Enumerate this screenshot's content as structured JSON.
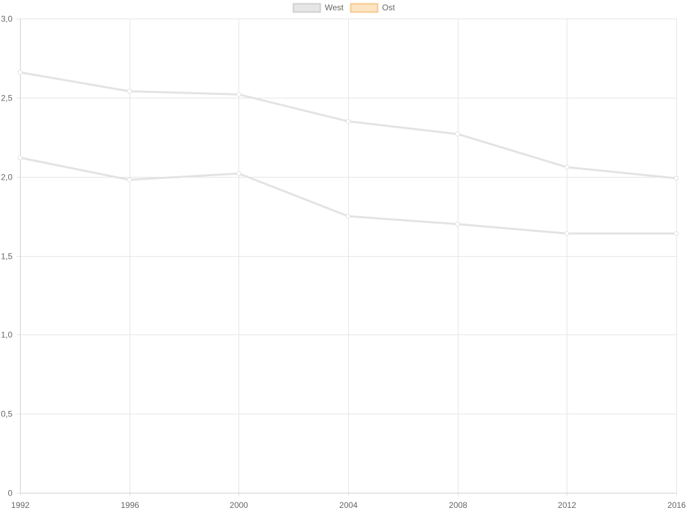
{
  "chart_data": {
    "type": "line",
    "x": [
      "1992",
      "1996",
      "2000",
      "2004",
      "2008",
      "2012",
      "2016"
    ],
    "series": [
      {
        "name": "West",
        "values": [
          2.66,
          2.54,
          2.52,
          2.35,
          2.27,
          2.06,
          1.99
        ],
        "color": "#e3e3e3"
      },
      {
        "name": "Ost",
        "values": [
          2.12,
          1.98,
          2.02,
          1.75,
          1.7,
          1.64,
          1.64
        ],
        "color": "#e3e3e3"
      }
    ],
    "legend": {
      "position": "top-center",
      "items": [
        {
          "label": "West",
          "fill": "#e6e6e6",
          "stroke": "#cfcfcf"
        },
        {
          "label": "Ost",
          "fill": "#fde4c2",
          "stroke": "#f5c98e"
        }
      ]
    },
    "y_ticks": [
      "0",
      "0,5",
      "1,0",
      "1,5",
      "2,0",
      "2,5",
      "3,0"
    ],
    "y_tick_values": [
      0,
      0.5,
      1.0,
      1.5,
      2.0,
      2.5,
      3.0
    ],
    "ylim": [
      0,
      3.0
    ],
    "grid": true,
    "title": "",
    "xlabel": "",
    "ylabel": ""
  }
}
